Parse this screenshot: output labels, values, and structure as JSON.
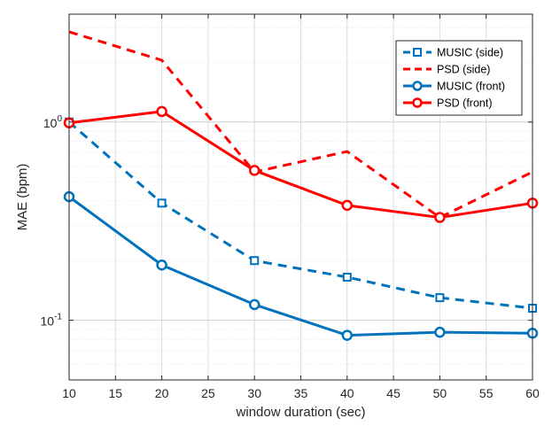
{
  "chart_data": {
    "type": "line",
    "title": "",
    "xlabel": "window duration (sec)",
    "ylabel": "MAE (bpm)",
    "x": [
      10,
      20,
      30,
      40,
      50,
      60
    ],
    "xlim": [
      10,
      60
    ],
    "xticks": [
      10,
      15,
      20,
      25,
      30,
      35,
      40,
      45,
      50,
      55,
      60
    ],
    "yscale": "log",
    "ylim": [
      0.05,
      3.5
    ],
    "yticks": [
      {
        "value": 0.1,
        "base": "10",
        "exp": "-1"
      },
      {
        "value": 1,
        "base": "10",
        "exp": "0"
      }
    ],
    "grid": true,
    "minor_grid": true,
    "legend_position": "top-right",
    "series": [
      {
        "name": "MUSIC (side)",
        "color": "#0072BD",
        "line": "dashed",
        "marker": "square",
        "values": [
          1.0,
          0.39,
          0.2,
          0.165,
          0.13,
          0.115
        ]
      },
      {
        "name": "PSD (side)",
        "color": "#FF0000",
        "line": "dashed",
        "marker": "none",
        "values": [
          2.85,
          2.05,
          0.56,
          0.71,
          0.33,
          0.56
        ]
      },
      {
        "name": "MUSIC (front)",
        "color": "#0072BD",
        "line": "solid",
        "marker": "circle",
        "values": [
          0.42,
          0.19,
          0.12,
          0.084,
          0.087,
          0.086
        ]
      },
      {
        "name": "PSD (front)",
        "color": "#FF0000",
        "line": "solid",
        "marker": "circle",
        "values": [
          0.99,
          1.13,
          0.57,
          0.38,
          0.33,
          0.39
        ]
      }
    ]
  }
}
